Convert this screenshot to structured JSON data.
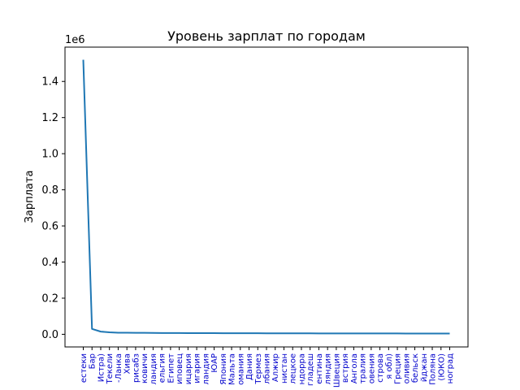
{
  "chart_data": {
    "type": "line",
    "title": "Уровень зарплат по городам",
    "xlabel": "",
    "ylabel": "Зарплата",
    "y_offset_label": "1e6",
    "ylim": [
      -70000,
      1590000
    ],
    "yticks": [
      0.0,
      200000,
      400000,
      600000,
      800000,
      1000000,
      1200000,
      1400000
    ],
    "ytick_labels": [
      "0.0",
      "0.2",
      "0.4",
      "0.6",
      "0.8",
      "1.0",
      "1.2",
      "1.4"
    ],
    "grid": false,
    "categories": [
      "естеки",
      "Бар",
      "Истра)",
      "Текели",
      "-Ланка",
      "Хива",
      "рисабз",
      "ковичи",
      "ландия",
      "ельгия",
      "Египет",
      "иповец",
      "ицария",
      "игария",
      "ландия",
      "ЮАР",
      "Япония",
      "Мальта",
      "омания",
      "Дания",
      "Термез",
      "лбания",
      "Алжир",
      "нистан",
      "лецкое",
      "ндорра",
      "гладеш",
      "ентина",
      "ляндия",
      "Швеция",
      "встрия",
      "Ангола",
      "тралия",
      "овения",
      "строва",
      "я обл)",
      "Греция",
      "оливия",
      "бельск",
      "йджан",
      "Поляна",
      "(ЮКО)",
      "ноград"
    ],
    "series": [
      {
        "color": "#1f77b4",
        "values": [
          1520000,
          30000,
          15000,
          11000,
          9000,
          8500,
          8000,
          8000,
          7500,
          7200,
          7000,
          6800,
          6600,
          6400,
          6300,
          6200,
          6100,
          6000,
          5900,
          5800,
          5700,
          5600,
          5500,
          5400,
          5300,
          5200,
          5100,
          5000,
          4950,
          4900,
          4850,
          4800,
          4750,
          4700,
          4650,
          4600,
          4550,
          4500,
          4450,
          4400,
          4350,
          4300,
          4250
        ]
      }
    ]
  }
}
